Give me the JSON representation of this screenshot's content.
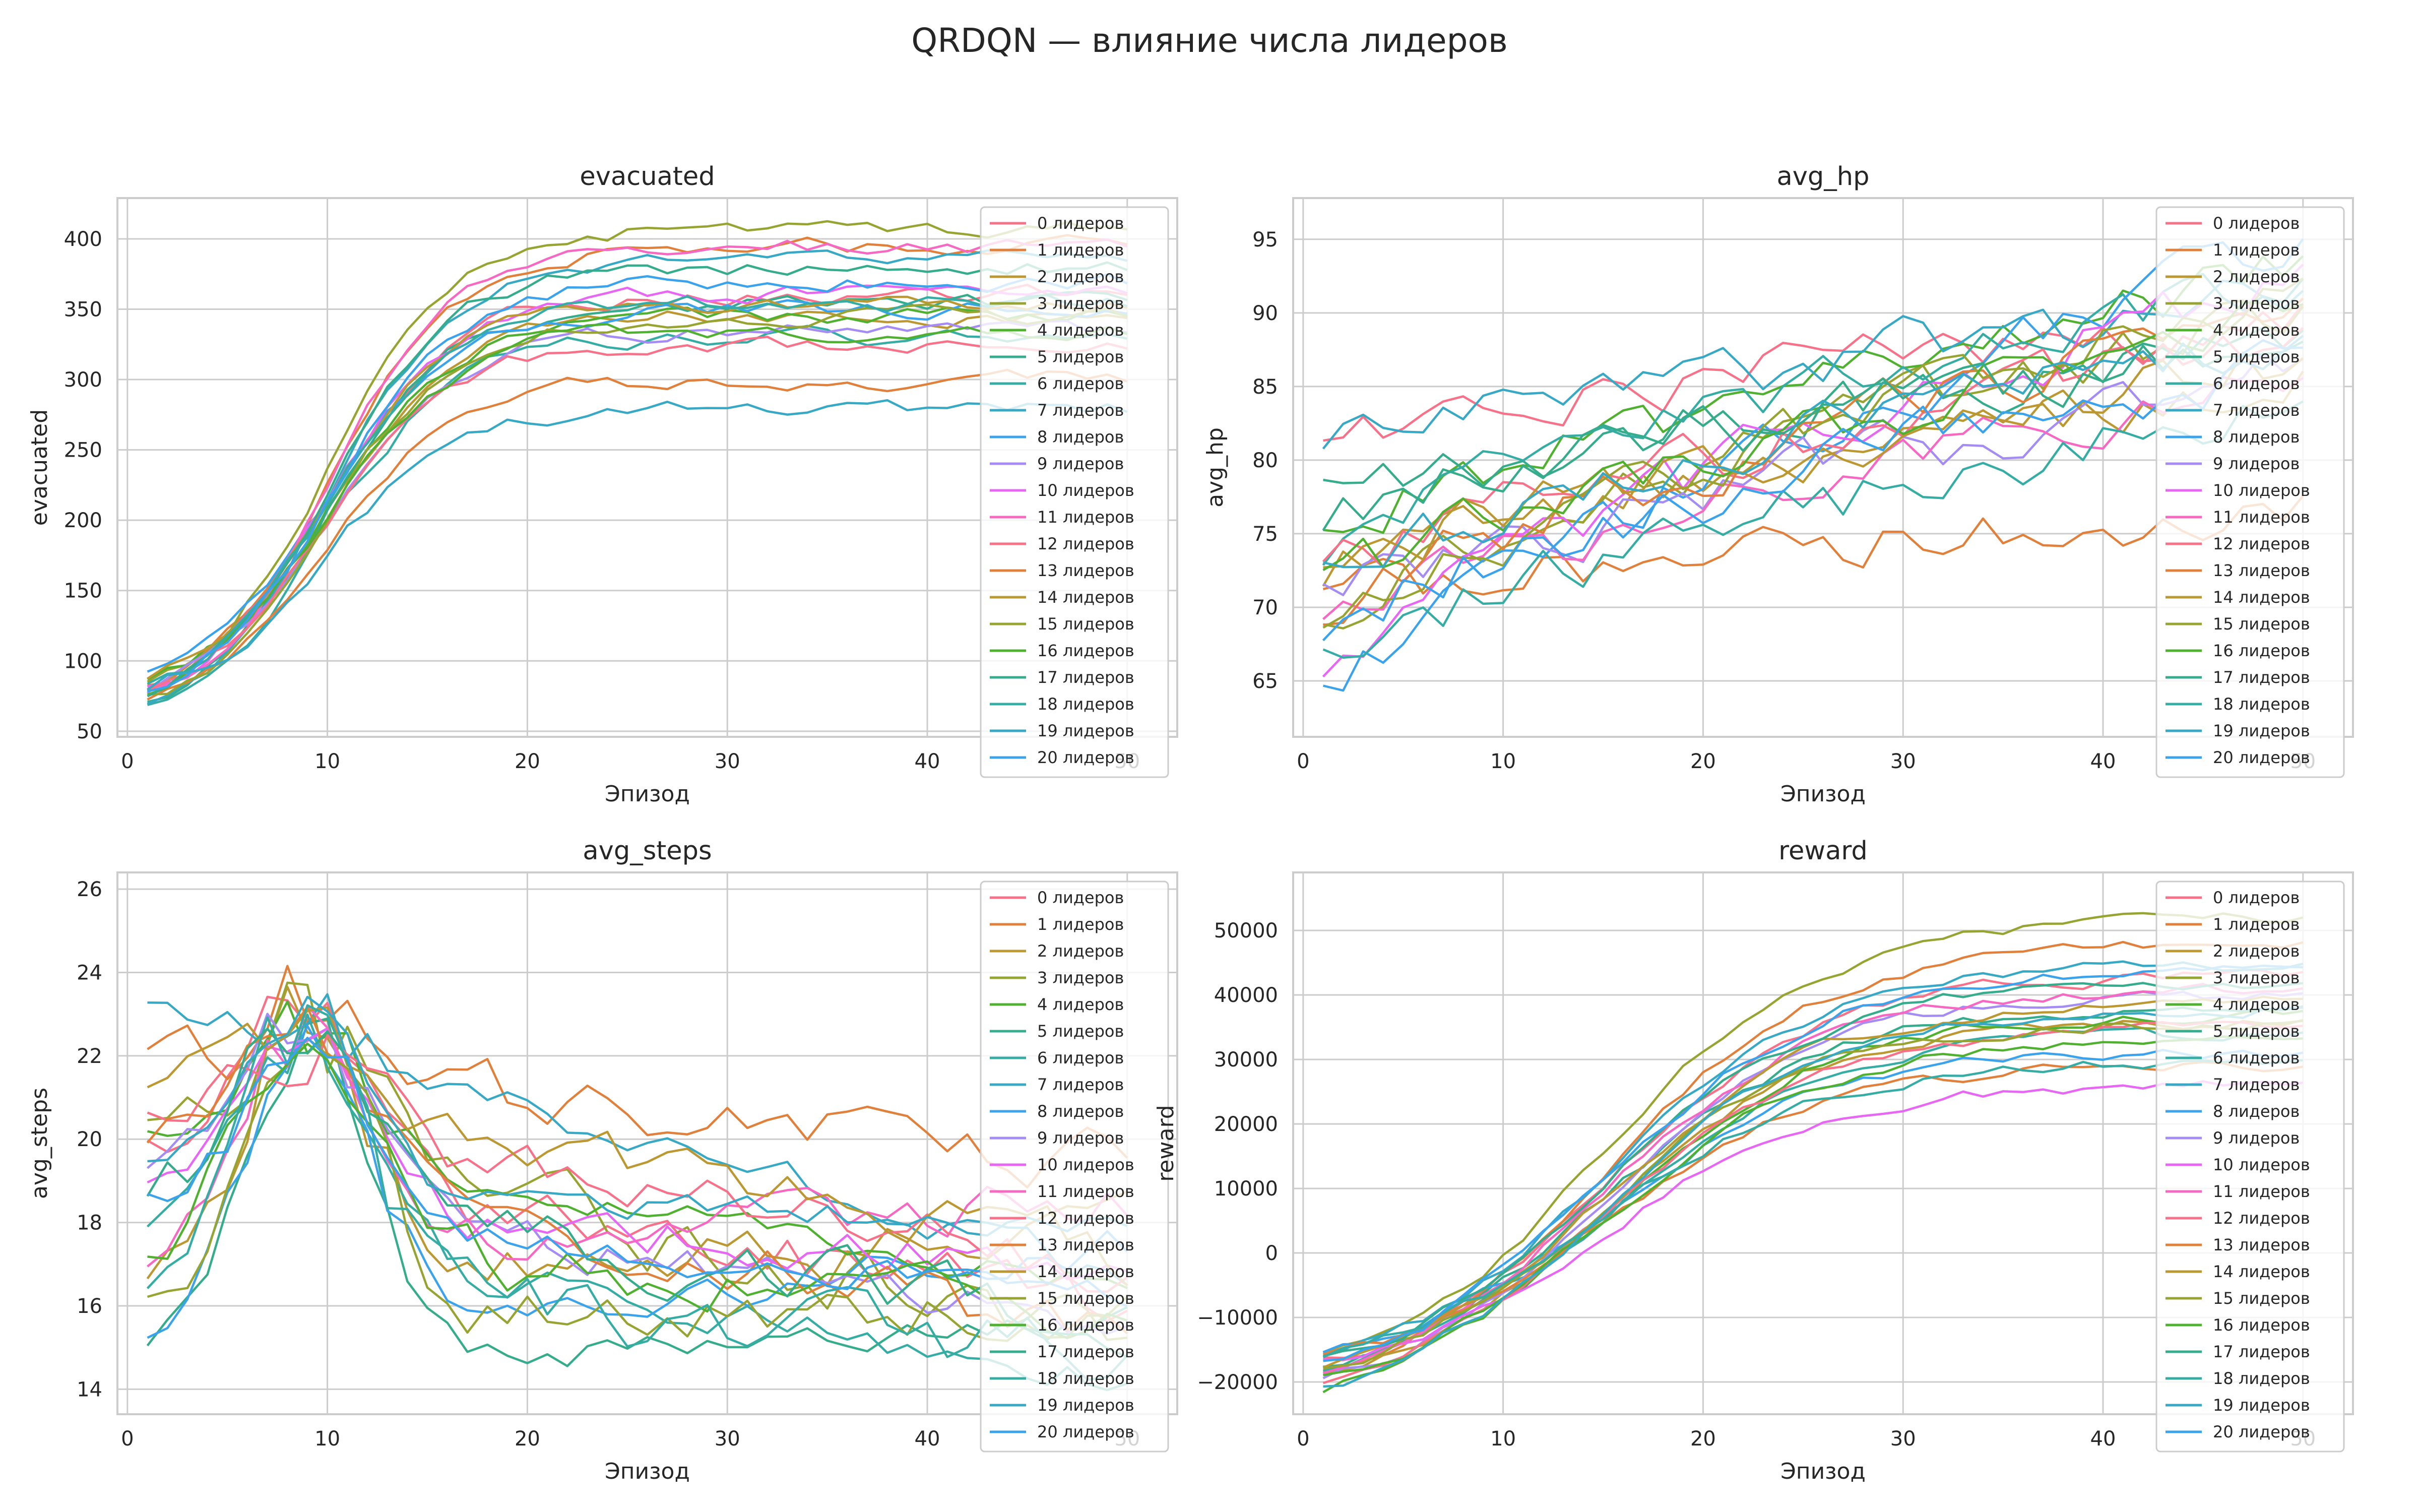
{
  "figure": {
    "title": "QRDQN — влияние числа лидеров",
    "legend_labels": [
      "0 лидеров",
      "1 лидеров",
      "2 лидеров",
      "3 лидеров",
      "4 лидеров",
      "5 лидеров",
      "6 лидеров",
      "7 лидеров",
      "8 лидеров",
      "9 лидеров",
      "10 лидеров",
      "11 лидеров",
      "12 лидеров",
      "13 лидеров",
      "14 лидеров",
      "15 лидеров",
      "16 лидеров",
      "17 лидеров",
      "18 лидеров",
      "19 лидеров",
      "20 лидеров"
    ],
    "series_colors": [
      "#f77189",
      "#e0803b",
      "#bb9831",
      "#97a431",
      "#50b131",
      "#35ac8b",
      "#36ada4",
      "#38a9c5",
      "#3ba3ec",
      "#a48cf4",
      "#e866f4",
      "#f668c2",
      "#f77189",
      "#e0803b",
      "#bb9831",
      "#97a431",
      "#50b131",
      "#35ac8b",
      "#36ada4",
      "#38a9c5",
      "#3ba3ec"
    ],
    "legend_location": "upper right",
    "grid": true
  },
  "chart_data": [
    {
      "type": "line",
      "title": "evacuated",
      "xlabel": "Эпизод",
      "ylabel": "evacuated",
      "xlim": [
        -0.5,
        52.5
      ],
      "ylim": [
        46,
        429
      ],
      "xticks": [
        0,
        10,
        20,
        30,
        40,
        50
      ],
      "yticks": [
        50,
        100,
        150,
        200,
        250,
        300,
        350,
        400
      ],
      "x": [
        1,
        2,
        3,
        4,
        5,
        6,
        7,
        8,
        9,
        10,
        11,
        12,
        13,
        14,
        15,
        16,
        17,
        18,
        19,
        20,
        21,
        22,
        23,
        24,
        25,
        26,
        27,
        28,
        29,
        30,
        31,
        32,
        33,
        34,
        35,
        36,
        37,
        38,
        39,
        40,
        41,
        42,
        43,
        44,
        45,
        46,
        47,
        48,
        49,
        50
      ],
      "series_params": [
        {
          "start": 80,
          "end": 360
        },
        {
          "start": 78,
          "end": 395
        },
        {
          "start": 82,
          "end": 345
        },
        {
          "start": 85,
          "end": 408
        },
        {
          "start": 84,
          "end": 345
        },
        {
          "start": 75,
          "end": 355
        },
        {
          "start": 70,
          "end": 330
        },
        {
          "start": 68,
          "end": 385
        },
        {
          "start": 88,
          "end": 350
        },
        {
          "start": 80,
          "end": 335
        },
        {
          "start": 82,
          "end": 362
        },
        {
          "start": 77,
          "end": 395
        },
        {
          "start": 83,
          "end": 325
        },
        {
          "start": 74,
          "end": 300
        },
        {
          "start": 86,
          "end": 355
        },
        {
          "start": 72,
          "end": 345
        },
        {
          "start": 79,
          "end": 335
        },
        {
          "start": 75,
          "end": 380
        },
        {
          "start": 81,
          "end": 355
        },
        {
          "start": 84,
          "end": 280
        },
        {
          "start": 80,
          "end": 370
        }
      ]
    },
    {
      "type": "line",
      "title": "avg_hp",
      "xlabel": "Эпизод",
      "ylabel": "avg_hp",
      "xlim": [
        -0.5,
        52.5
      ],
      "ylim": [
        61.2,
        97.8
      ],
      "xticks": [
        0,
        10,
        20,
        30,
        40,
        50
      ],
      "yticks": [
        65,
        70,
        75,
        80,
        85,
        90,
        95
      ],
      "x": [
        1,
        2,
        3,
        4,
        5,
        6,
        7,
        8,
        9,
        10,
        11,
        12,
        13,
        14,
        15,
        16,
        17,
        18,
        19,
        20,
        21,
        22,
        23,
        24,
        25,
        26,
        27,
        28,
        29,
        30,
        31,
        32,
        33,
        34,
        35,
        36,
        37,
        38,
        39,
        40,
        41,
        42,
        43,
        44,
        45,
        46,
        47,
        48,
        49,
        50
      ],
      "series_params": [
        {
          "start": 81.5,
          "end": 90
        },
        {
          "start": 70.5,
          "end": 77
        },
        {
          "start": 73,
          "end": 86
        },
        {
          "start": 69.5,
          "end": 90
        },
        {
          "start": 75,
          "end": 93
        },
        {
          "start": 77.5,
          "end": 88
        },
        {
          "start": 74,
          "end": 92
        },
        {
          "start": 81,
          "end": 91
        },
        {
          "start": 64,
          "end": 95
        },
        {
          "start": 70,
          "end": 86
        },
        {
          "start": 66,
          "end": 93
        },
        {
          "start": 69,
          "end": 85
        },
        {
          "start": 72,
          "end": 89
        },
        {
          "start": 70,
          "end": 91
        },
        {
          "start": 73,
          "end": 87
        },
        {
          "start": 68,
          "end": 92
        },
        {
          "start": 71,
          "end": 90
        },
        {
          "start": 76,
          "end": 88
        },
        {
          "start": 67,
          "end": 84
        },
        {
          "start": 72,
          "end": 89
        },
        {
          "start": 69,
          "end": 87
        }
      ]
    },
    {
      "type": "line",
      "title": "avg_steps",
      "xlabel": "Эпизод",
      "ylabel": "avg_steps",
      "xlim": [
        -0.5,
        52.5
      ],
      "ylim": [
        13.4,
        26.4
      ],
      "xticks": [
        0,
        10,
        20,
        30,
        40,
        50
      ],
      "yticks": [
        14,
        16,
        18,
        20,
        22,
        24,
        26
      ],
      "x": [
        1,
        2,
        3,
        4,
        5,
        6,
        7,
        8,
        9,
        10,
        11,
        12,
        13,
        14,
        15,
        16,
        17,
        18,
        19,
        20,
        21,
        22,
        23,
        24,
        25,
        26,
        27,
        28,
        29,
        30,
        31,
        32,
        33,
        34,
        35,
        36,
        37,
        38,
        39,
        40,
        41,
        42,
        43,
        44,
        45,
        46,
        47,
        48,
        49,
        50
      ],
      "series_params": [
        {
          "start": 19.5,
          "end": 16.0
        },
        {
          "start": 21.5,
          "end": 19.5
        },
        {
          "start": 16.8,
          "end": 17.5
        },
        {
          "start": 20.5,
          "end": 15.0
        },
        {
          "start": 20.0,
          "end": 16.5
        },
        {
          "start": 14.5,
          "end": 15.5
        },
        {
          "start": 18.0,
          "end": 14.2
        },
        {
          "start": 23.5,
          "end": 16.5
        },
        {
          "start": 15.0,
          "end": 17.5
        },
        {
          "start": 19.0,
          "end": 15.5
        },
        {
          "start": 18.5,
          "end": 17.0
        },
        {
          "start": 17.2,
          "end": 18.5
        },
        {
          "start": 20.8,
          "end": 16.8
        },
        {
          "start": 19.8,
          "end": 15.2
        },
        {
          "start": 21.0,
          "end": 17.2
        },
        {
          "start": 15.5,
          "end": 16.2
        },
        {
          "start": 17.5,
          "end": 15.8
        },
        {
          "start": 18.8,
          "end": 16.0
        },
        {
          "start": 16.2,
          "end": 14.8
        },
        {
          "start": 19.2,
          "end": 17.8
        },
        {
          "start": 18.2,
          "end": 16.4
        }
      ]
    },
    {
      "type": "line",
      "title": "reward",
      "xlabel": "Эпизод",
      "ylabel": "reward",
      "xlim": [
        -0.5,
        52.5
      ],
      "ylim": [
        -25000,
        59000
      ],
      "xticks": [
        0,
        10,
        20,
        30,
        40,
        50
      ],
      "yticks": [
        -20000,
        -10000,
        0,
        10000,
        20000,
        30000,
        40000,
        50000
      ],
      "x": [
        1,
        2,
        3,
        4,
        5,
        6,
        7,
        8,
        9,
        10,
        11,
        12,
        13,
        14,
        15,
        16,
        17,
        18,
        19,
        20,
        21,
        22,
        23,
        24,
        25,
        26,
        27,
        28,
        29,
        30,
        31,
        32,
        33,
        34,
        35,
        36,
        37,
        38,
        39,
        40,
        41,
        42,
        43,
        44,
        45,
        46,
        47,
        48,
        49,
        50
      ],
      "series_params": [
        {
          "start": -17000,
          "end": 43000
        },
        {
          "start": -18000,
          "end": 48000
        },
        {
          "start": -19000,
          "end": 36000
        },
        {
          "start": -16000,
          "end": 52000
        },
        {
          "start": -21000,
          "end": 37000
        },
        {
          "start": -17500,
          "end": 38000
        },
        {
          "start": -18500,
          "end": 34000
        },
        {
          "start": -16500,
          "end": 45000
        },
        {
          "start": -15000,
          "end": 31000
        },
        {
          "start": -19500,
          "end": 40000
        },
        {
          "start": -17000,
          "end": 26000
        },
        {
          "start": -18000,
          "end": 41000
        },
        {
          "start": -20000,
          "end": 35000
        },
        {
          "start": -16000,
          "end": 29000
        },
        {
          "start": -18500,
          "end": 39000
        },
        {
          "start": -17500,
          "end": 36000
        },
        {
          "start": -19000,
          "end": 33000
        },
        {
          "start": -16500,
          "end": 42000
        },
        {
          "start": -15500,
          "end": 30000
        },
        {
          "start": -20500,
          "end": 38000
        },
        {
          "start": -17000,
          "end": 44000
        }
      ]
    }
  ]
}
